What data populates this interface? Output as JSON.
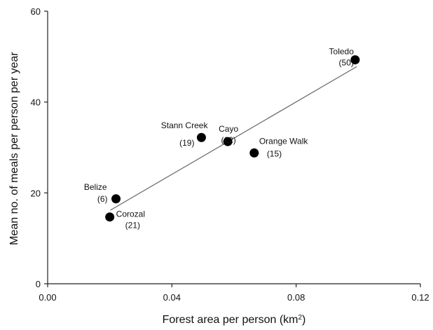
{
  "chart_data": {
    "type": "scatter",
    "xlabel": "Forest area per person (km",
    "xlabel_sup": "2",
    "xlabel_suffix": ")",
    "ylabel": "Mean no. of meals per person per year",
    "xlim": [
      0,
      0.12
    ],
    "ylim": [
      0,
      60
    ],
    "x_ticks": [
      "0.00",
      "0.04",
      "0.08",
      "0.12"
    ],
    "y_ticks": [
      "0",
      "20",
      "40",
      "60"
    ],
    "x_tick_values": [
      0,
      0.04,
      0.08,
      0.12
    ],
    "y_tick_values": [
      0,
      20,
      40,
      60
    ],
    "grid": false,
    "points": [
      {
        "name": "Toledo",
        "n": "(50)",
        "x": 0.099,
        "y": 49.3
      },
      {
        "name": "Stann Creek",
        "n": "(19)",
        "x": 0.0495,
        "y": 32.2
      },
      {
        "name": "Cayo",
        "n": "(12)",
        "x": 0.058,
        "y": 31.3
      },
      {
        "name": "Orange Walk",
        "n": "(15)",
        "x": 0.0665,
        "y": 28.8
      },
      {
        "name": "Belize",
        "n": "(6)",
        "x": 0.022,
        "y": 18.7
      },
      {
        "name": "Corozal",
        "n": "(21)",
        "x": 0.02,
        "y": 14.7
      }
    ],
    "trendline": {
      "x": [
        0.0202,
        0.0995
      ],
      "y": [
        16.2,
        47.8
      ]
    }
  }
}
